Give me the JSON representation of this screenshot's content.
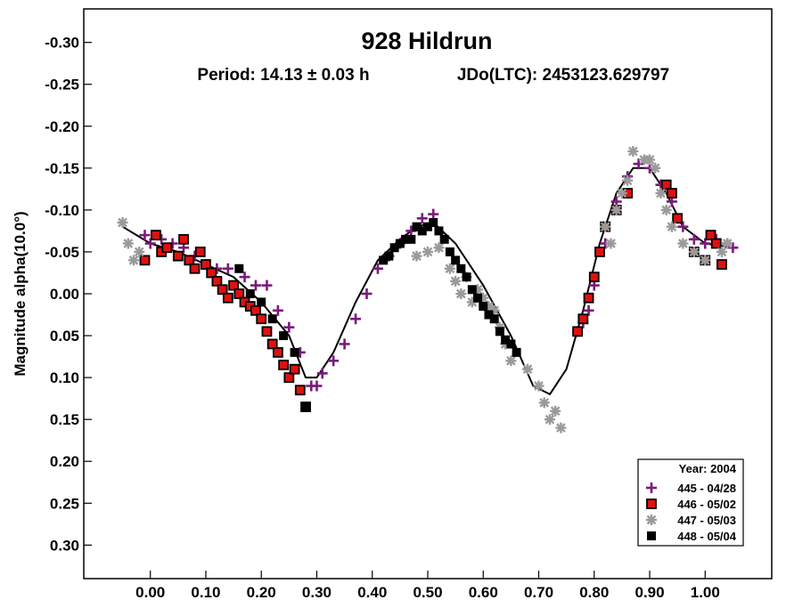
{
  "chart_data": {
    "type": "scatter",
    "title": "928 Hildrun",
    "subtitle_period": "Period: 14.13 ± 0.03 h",
    "subtitle_epoch": "JDo(LTC): 2453123.629797",
    "ylabel": "Magnitude alpha(10.0°)",
    "xlim": [
      -0.12,
      1.12
    ],
    "ylim": [
      -0.34,
      0.34
    ],
    "y_inverted": true,
    "x_ticks": [
      "0.00",
      "0.10",
      "0.20",
      "0.30",
      "0.40",
      "0.50",
      "0.60",
      "0.70",
      "0.80",
      "0.90",
      "1.00"
    ],
    "y_ticks": [
      "-0.30",
      "-0.25",
      "-0.20",
      "-0.15",
      "-0.10",
      "-0.05",
      "0.00",
      "0.05",
      "0.10",
      "0.15",
      "0.20",
      "0.25",
      "0.30"
    ],
    "legend_title": "Year: 2004",
    "legend_position": "bottom-right",
    "series": [
      {
        "name": "445 - 04/28",
        "marker": "plus",
        "color": "#7b1a7b",
        "points": [
          [
            -0.01,
            -0.07
          ],
          [
            0.0,
            -0.06
          ],
          [
            0.02,
            -0.065
          ],
          [
            0.04,
            -0.06
          ],
          [
            0.06,
            -0.055
          ],
          [
            0.08,
            -0.045
          ],
          [
            0.1,
            -0.035
          ],
          [
            0.12,
            -0.03
          ],
          [
            0.14,
            -0.03
          ],
          [
            0.17,
            -0.02
          ],
          [
            0.19,
            -0.01
          ],
          [
            0.21,
            -0.01
          ],
          [
            0.23,
            0.02
          ],
          [
            0.25,
            0.04
          ],
          [
            0.27,
            0.07
          ],
          [
            0.29,
            0.11
          ],
          [
            0.3,
            0.11
          ],
          [
            0.31,
            0.095
          ],
          [
            0.33,
            0.08
          ],
          [
            0.35,
            0.06
          ],
          [
            0.37,
            0.03
          ],
          [
            0.39,
            0.0
          ],
          [
            0.41,
            -0.03
          ],
          [
            0.43,
            -0.045
          ],
          [
            0.45,
            -0.06
          ],
          [
            0.47,
            -0.075
          ],
          [
            0.49,
            -0.09
          ],
          [
            0.51,
            -0.095
          ],
          [
            0.77,
            0.045
          ],
          [
            0.78,
            0.035
          ],
          [
            0.79,
            0.02
          ],
          [
            0.8,
            -0.01
          ],
          [
            0.82,
            -0.06
          ],
          [
            0.84,
            -0.11
          ],
          [
            0.86,
            -0.14
          ],
          [
            0.88,
            -0.155
          ],
          [
            0.9,
            -0.15
          ],
          [
            0.92,
            -0.13
          ],
          [
            0.94,
            -0.11
          ],
          [
            0.96,
            -0.08
          ],
          [
            0.98,
            -0.065
          ],
          [
            1.0,
            -0.06
          ],
          [
            1.02,
            -0.065
          ],
          [
            1.04,
            -0.06
          ],
          [
            1.05,
            -0.055
          ]
        ]
      },
      {
        "name": "446 - 05/02",
        "marker": "square",
        "color": "#e01010",
        "points": [
          [
            -0.01,
            -0.04
          ],
          [
            0.01,
            -0.07
          ],
          [
            0.02,
            -0.05
          ],
          [
            0.03,
            -0.055
          ],
          [
            0.05,
            -0.045
          ],
          [
            0.06,
            -0.065
          ],
          [
            0.07,
            -0.04
          ],
          [
            0.08,
            -0.03
          ],
          [
            0.09,
            -0.05
          ],
          [
            0.1,
            -0.035
          ],
          [
            0.11,
            -0.025
          ],
          [
            0.12,
            -0.015
          ],
          [
            0.13,
            -0.005
          ],
          [
            0.14,
            0.005
          ],
          [
            0.15,
            -0.01
          ],
          [
            0.16,
            0.0
          ],
          [
            0.17,
            0.01
          ],
          [
            0.18,
            0.015
          ],
          [
            0.19,
            0.02
          ],
          [
            0.2,
            0.03
          ],
          [
            0.21,
            0.045
          ],
          [
            0.22,
            0.06
          ],
          [
            0.23,
            0.07
          ],
          [
            0.24,
            0.085
          ],
          [
            0.25,
            0.1
          ],
          [
            0.26,
            0.09
          ],
          [
            0.27,
            0.115
          ],
          [
            0.28,
            0.135
          ],
          [
            0.77,
            0.045
          ],
          [
            0.78,
            0.03
          ],
          [
            0.79,
            0.005
          ],
          [
            0.8,
            -0.02
          ],
          [
            0.81,
            -0.05
          ],
          [
            0.82,
            -0.08
          ],
          [
            0.84,
            -0.1
          ],
          [
            0.86,
            -0.12
          ],
          [
            0.93,
            -0.13
          ],
          [
            0.94,
            -0.12
          ],
          [
            0.95,
            -0.09
          ],
          [
            0.98,
            -0.05
          ],
          [
            1.0,
            -0.04
          ],
          [
            1.01,
            -0.07
          ],
          [
            1.02,
            -0.06
          ],
          [
            1.03,
            -0.035
          ]
        ]
      },
      {
        "name": "447 - 05/03",
        "marker": "asterisk",
        "color": "#9a9a9a",
        "points": [
          [
            -0.05,
            -0.085
          ],
          [
            -0.04,
            -0.06
          ],
          [
            -0.03,
            -0.04
          ],
          [
            -0.02,
            -0.05
          ],
          [
            0.48,
            -0.045
          ],
          [
            0.5,
            -0.05
          ],
          [
            0.52,
            -0.055
          ],
          [
            0.54,
            -0.03
          ],
          [
            0.55,
            -0.015
          ],
          [
            0.56,
            0.0
          ],
          [
            0.57,
            -0.02
          ],
          [
            0.58,
            0.01
          ],
          [
            0.59,
            -0.005
          ],
          [
            0.6,
            0.005
          ],
          [
            0.61,
            0.015
          ],
          [
            0.62,
            0.02
          ],
          [
            0.63,
            0.04
          ],
          [
            0.64,
            0.06
          ],
          [
            0.65,
            0.08
          ],
          [
            0.68,
            0.09
          ],
          [
            0.7,
            0.11
          ],
          [
            0.71,
            0.13
          ],
          [
            0.72,
            0.15
          ],
          [
            0.73,
            0.14
          ],
          [
            0.74,
            0.16
          ],
          [
            0.82,
            -0.08
          ],
          [
            0.83,
            -0.06
          ],
          [
            0.84,
            -0.1
          ],
          [
            0.85,
            -0.12
          ],
          [
            0.86,
            -0.135
          ],
          [
            0.87,
            -0.17
          ],
          [
            0.89,
            -0.16
          ],
          [
            0.9,
            -0.16
          ],
          [
            0.91,
            -0.15
          ],
          [
            0.92,
            -0.12
          ],
          [
            0.93,
            -0.1
          ],
          [
            0.94,
            -0.08
          ],
          [
            0.96,
            -0.06
          ],
          [
            0.98,
            -0.05
          ],
          [
            1.0,
            -0.04
          ],
          [
            1.03,
            -0.05
          ],
          [
            1.04,
            -0.06
          ]
        ]
      },
      {
        "name": "448 - 05/04",
        "marker": "filled-square",
        "color": "#000000",
        "points": [
          [
            0.16,
            -0.03
          ],
          [
            0.18,
            0.0
          ],
          [
            0.2,
            0.01
          ],
          [
            0.22,
            0.03
          ],
          [
            0.24,
            0.05
          ],
          [
            0.26,
            0.07
          ],
          [
            0.28,
            0.135
          ],
          [
            0.42,
            -0.04
          ],
          [
            0.43,
            -0.045
          ],
          [
            0.44,
            -0.055
          ],
          [
            0.45,
            -0.06
          ],
          [
            0.46,
            -0.065
          ],
          [
            0.47,
            -0.065
          ],
          [
            0.48,
            -0.08
          ],
          [
            0.49,
            -0.075
          ],
          [
            0.5,
            -0.08
          ],
          [
            0.51,
            -0.085
          ],
          [
            0.52,
            -0.075
          ],
          [
            0.53,
            -0.065
          ],
          [
            0.54,
            -0.05
          ],
          [
            0.55,
            -0.04
          ],
          [
            0.56,
            -0.03
          ],
          [
            0.57,
            -0.02
          ],
          [
            0.58,
            -0.005
          ],
          [
            0.59,
            0.005
          ],
          [
            0.6,
            0.015
          ],
          [
            0.61,
            0.025
          ],
          [
            0.62,
            0.03
          ],
          [
            0.63,
            0.045
          ],
          [
            0.64,
            0.055
          ],
          [
            0.65,
            0.06
          ],
          [
            0.66,
            0.07
          ]
        ]
      }
    ],
    "fit_curve": {
      "color": "#000000",
      "points": [
        [
          -0.05,
          -0.08
        ],
        [
          0.0,
          -0.06
        ],
        [
          0.05,
          -0.05
        ],
        [
          0.1,
          -0.035
        ],
        [
          0.15,
          -0.02
        ],
        [
          0.2,
          0.01
        ],
        [
          0.25,
          0.05
        ],
        [
          0.28,
          0.1
        ],
        [
          0.3,
          0.1
        ],
        [
          0.33,
          0.07
        ],
        [
          0.37,
          0.01
        ],
        [
          0.41,
          -0.04
        ],
        [
          0.45,
          -0.065
        ],
        [
          0.48,
          -0.08
        ],
        [
          0.51,
          -0.085
        ],
        [
          0.55,
          -0.06
        ],
        [
          0.6,
          -0.01
        ],
        [
          0.65,
          0.05
        ],
        [
          0.69,
          0.11
        ],
        [
          0.72,
          0.12
        ],
        [
          0.75,
          0.09
        ],
        [
          0.78,
          0.02
        ],
        [
          0.81,
          -0.06
        ],
        [
          0.84,
          -0.12
        ],
        [
          0.87,
          -0.15
        ],
        [
          0.9,
          -0.15
        ],
        [
          0.93,
          -0.12
        ],
        [
          0.96,
          -0.08
        ],
        [
          1.0,
          -0.06
        ],
        [
          1.05,
          -0.055
        ]
      ]
    }
  }
}
